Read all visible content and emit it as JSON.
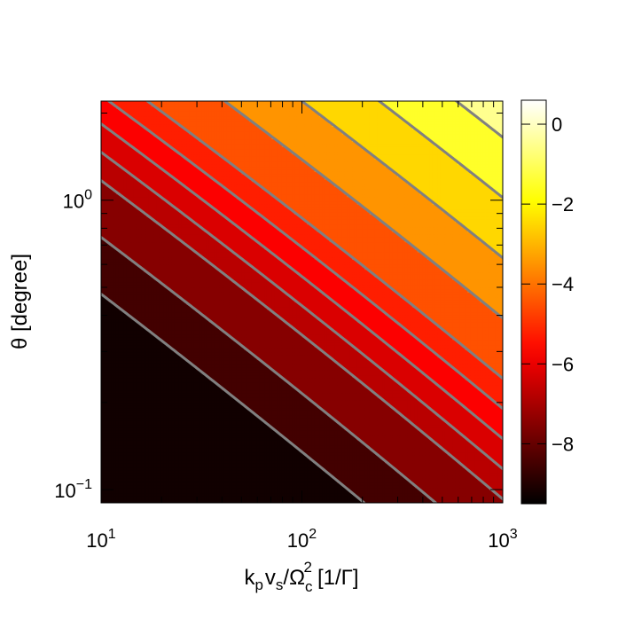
{
  "chart_data": {
    "type": "heatmap",
    "title": "",
    "xlabel": "k_p v_s/Ω_c^2 [1/Γ]",
    "xlabel_parts": {
      "k": "k",
      "p": "p",
      "v": "v",
      "s": "s",
      "omega": "/Ω",
      "c": "c",
      "sq": "2",
      "unit": "[1/Γ]"
    },
    "ylabel": "θ [degree]",
    "x_scale": "log",
    "y_scale": "log",
    "xlim": [
      10,
      1000
    ],
    "ylim": [
      0.09,
      2.2
    ],
    "x_ticks": [
      {
        "base": "10",
        "exp": "1"
      },
      {
        "base": "10",
        "exp": "2"
      },
      {
        "base": "10",
        "exp": "3"
      }
    ],
    "y_ticks": [
      {
        "base": "10",
        "exp": "0"
      },
      {
        "base": "10",
        "exp": "−1"
      }
    ],
    "colorbar": {
      "range": [
        -9.5,
        0.6
      ],
      "tick_values": [
        0,
        -2,
        -4,
        -6,
        -8
      ],
      "tick_labels": [
        "0",
        "−2",
        "−4",
        "−6",
        "−8"
      ],
      "colormap": "hot"
    },
    "contour_levels": [
      -9,
      -8,
      -7,
      -6.5,
      -6,
      -5.5,
      -5,
      -4,
      -3,
      -2,
      -1,
      0
    ],
    "contour_color": "#808080",
    "grid": false
  }
}
